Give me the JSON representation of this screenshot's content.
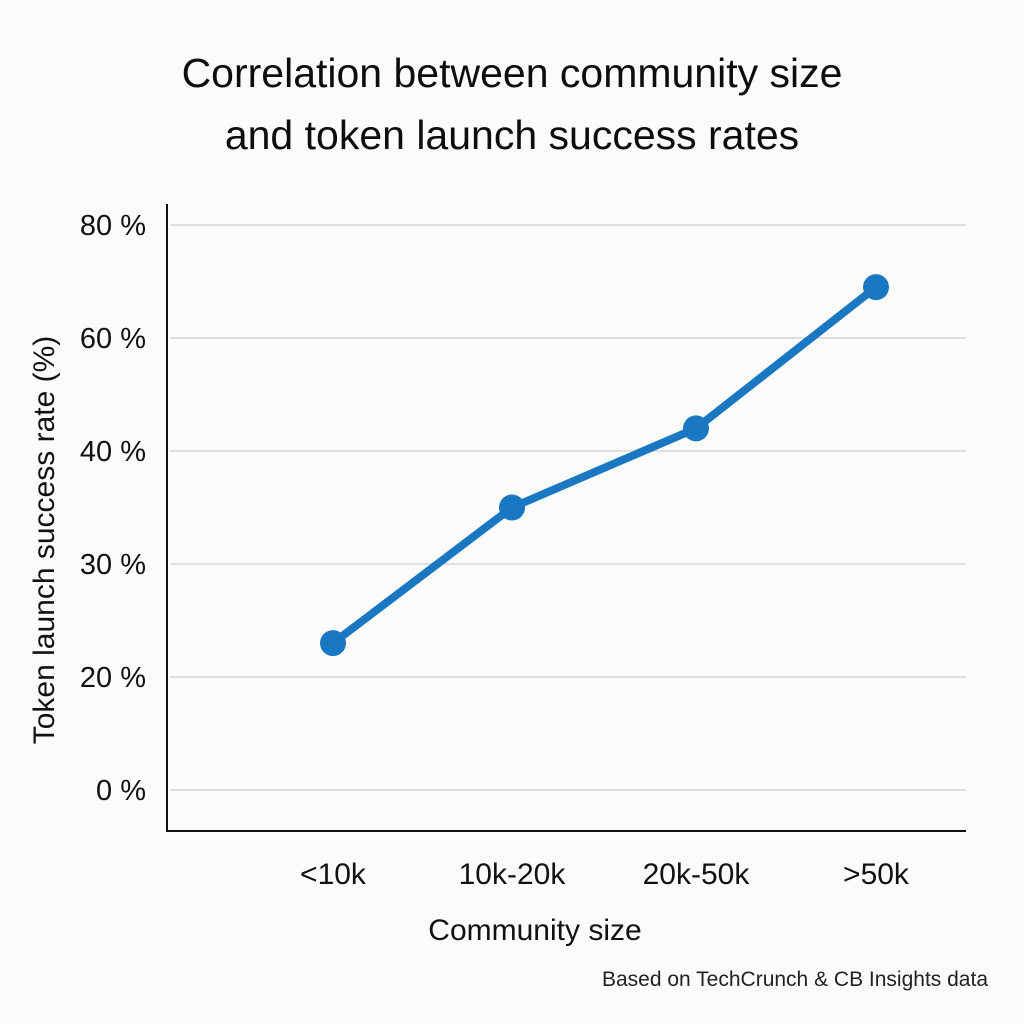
{
  "chart_data": {
    "type": "line",
    "title_lines": [
      "Correlation between community size",
      "and token launch success rates"
    ],
    "xlabel": "Community size",
    "ylabel": "Token launch success rate (%)",
    "categories": [
      "<10k",
      "10k-20k",
      "20k-50k",
      ">50k"
    ],
    "series": [
      {
        "name": "Token launch success rate",
        "values": [
          23,
          35,
          44,
          69
        ]
      }
    ],
    "y_ticks": [
      {
        "label": "0 %",
        "value": 0
      },
      {
        "label": "20 %",
        "value": 20
      },
      {
        "label": "30 %",
        "value": 30
      },
      {
        "label": "40 %",
        "value": 40
      },
      {
        "label": "60 %",
        "value": 60
      },
      {
        "label": "80 %",
        "value": 80
      }
    ],
    "grid": true,
    "line_color": "#1a78c2",
    "source": "Based on TechCrunch & CB Insights data"
  }
}
